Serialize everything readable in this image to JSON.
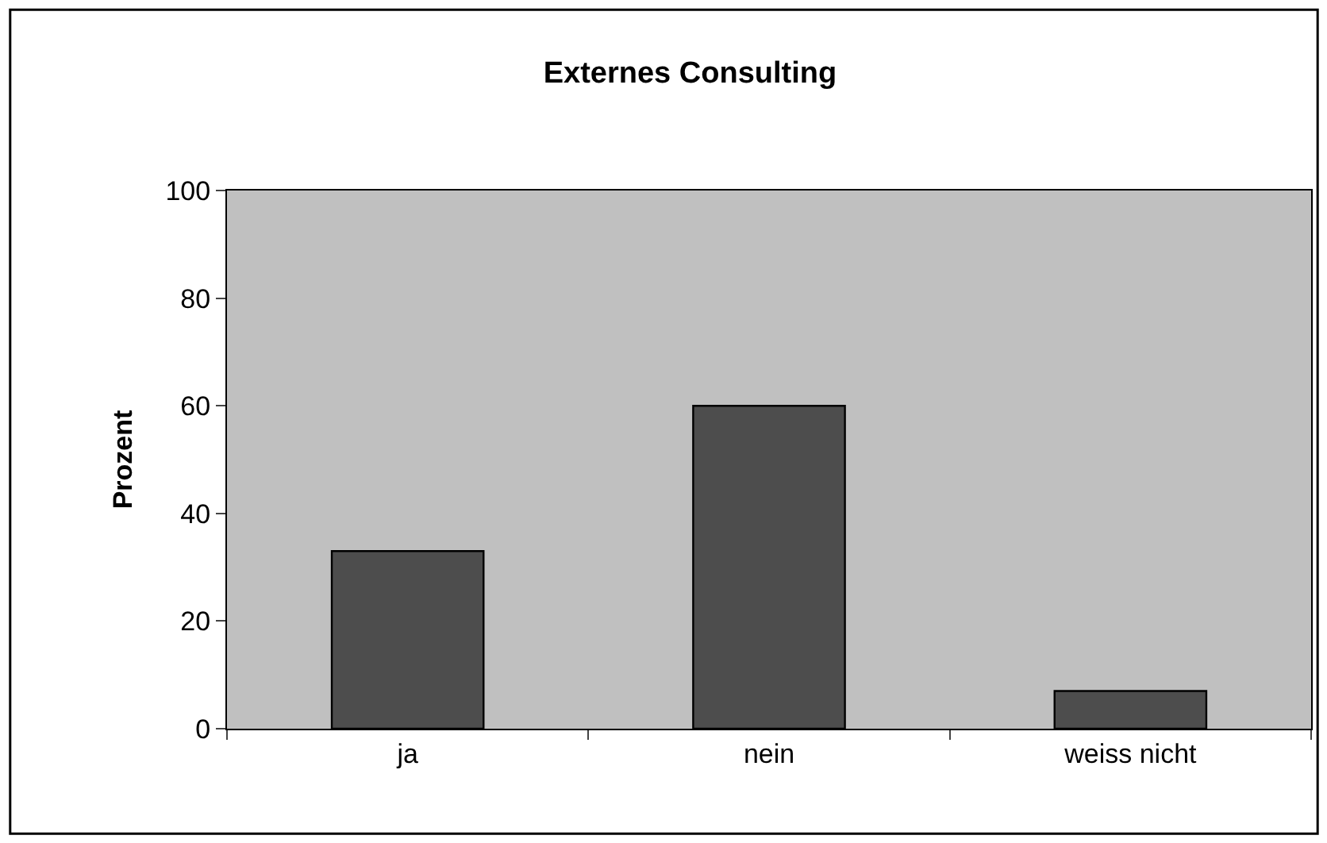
{
  "chart_data": {
    "type": "bar",
    "title": "Externes Consulting",
    "ylabel": "Prozent",
    "categories": [
      "ja",
      "nein",
      "weiss nicht"
    ],
    "values": [
      33,
      60,
      7
    ],
    "color": "#4d4d4d",
    "ylim": [
      0,
      100
    ],
    "yticks": [
      0,
      20,
      40,
      60,
      80,
      100
    ],
    "grid": false,
    "legend": false
  }
}
